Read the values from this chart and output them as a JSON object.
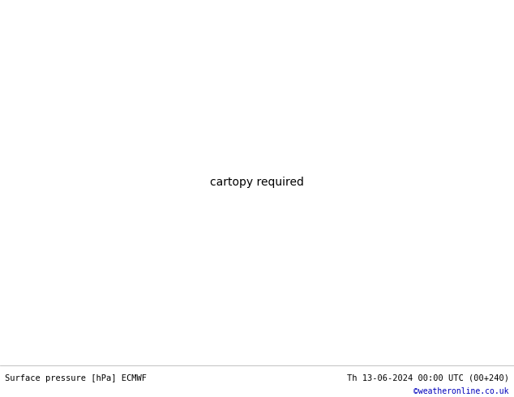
{
  "title_left": "Surface pressure [hPa] ECMWF",
  "title_right": "Th 13-06-2024 00:00 UTC (00+240)",
  "credit": "©weatheronline.co.uk",
  "bg_color": "#c8d0dc",
  "land_color": "#b8e890",
  "ocean_color": "#c8d0dc",
  "fig_width": 6.34,
  "fig_height": 4.9,
  "dpi": 100,
  "extent": [
    95,
    185,
    -58,
    8
  ],
  "footer_color": "#000000",
  "credit_color": "#0000bb"
}
